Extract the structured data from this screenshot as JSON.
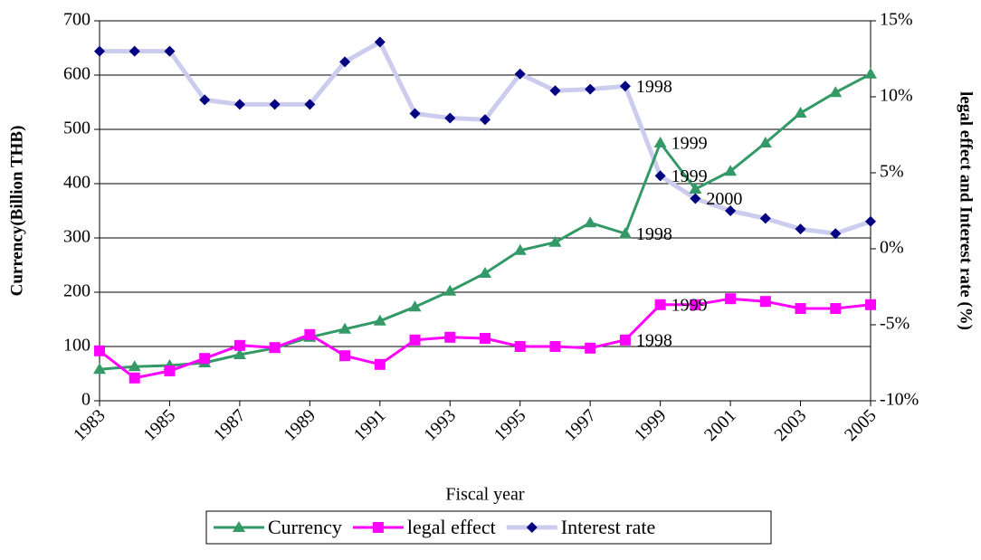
{
  "chart_data": {
    "type": "line",
    "x_label": "Fiscal year",
    "y_label": "Currency(Billion THB)",
    "y2_label": "legal effect and Interest rate (%)",
    "x": [
      1983,
      1984,
      1985,
      1986,
      1987,
      1988,
      1989,
      1990,
      1991,
      1992,
      1993,
      1994,
      1995,
      1996,
      1997,
      1998,
      1999,
      2000,
      2001,
      2002,
      2003,
      2004,
      2005
    ],
    "xlim": [
      1983,
      2005
    ],
    "xticks": [
      1983,
      1985,
      1987,
      1989,
      1991,
      1993,
      1995,
      1997,
      1999,
      2001,
      2003,
      2005
    ],
    "ylim": [
      0,
      700
    ],
    "yticks": [
      0,
      100,
      200,
      300,
      400,
      500,
      600,
      700
    ],
    "y2lim": [
      -10,
      15
    ],
    "y2ticks": [
      {
        "value": -10,
        "label": "-10%"
      },
      {
        "value": -5,
        "label": "-5%"
      },
      {
        "value": 0,
        "label": "0%"
      },
      {
        "value": 5,
        "label": "5%"
      },
      {
        "value": 10,
        "label": "10%"
      },
      {
        "value": 15,
        "label": "15%"
      }
    ],
    "grid": true,
    "legend": "bottom",
    "series": [
      {
        "name": "Currency",
        "color": "#339966",
        "marker": "triangle",
        "values": [
          58,
          63,
          65,
          70,
          85,
          97,
          117,
          132,
          147,
          173,
          202,
          235,
          277,
          292,
          328,
          308,
          475,
          390,
          423,
          475,
          530,
          568,
          602
        ]
      },
      {
        "name": "legal effect",
        "color": "#ff00ff",
        "marker": "square",
        "values": [
          92,
          42,
          55,
          78,
          102,
          98,
          122,
          83,
          67,
          112,
          117,
          115,
          100,
          100,
          97,
          112,
          177,
          177,
          188,
          183,
          170,
          170,
          177
        ]
      },
      {
        "name": "Interest rate",
        "color": "#ccccee",
        "marker_color": "#000080",
        "marker": "diamond",
        "axis": "y2",
        "values": [
          13.0,
          13.0,
          13.0,
          9.8,
          9.5,
          9.5,
          9.5,
          12.3,
          13.6,
          8.9,
          8.6,
          8.5,
          11.5,
          10.4,
          10.5,
          10.7,
          4.8,
          3.3,
          2.5,
          2.0,
          1.3,
          1.0,
          1.8
        ]
      }
    ],
    "annotations": [
      {
        "text": "1998",
        "x": 1998,
        "y": 308,
        "axis": "y"
      },
      {
        "text": "1999",
        "x": 1999,
        "y": 475,
        "axis": "y"
      },
      {
        "text": "2000",
        "x": 2000,
        "y": 3.3,
        "axis": "y2"
      },
      {
        "text": "1998",
        "x": 1998,
        "y": 10.7,
        "axis": "y2"
      },
      {
        "text": "1999",
        "x": 1999,
        "y": 4.8,
        "axis": "y2"
      },
      {
        "text": "1998",
        "x": 1998,
        "y": 112,
        "axis": "y"
      },
      {
        "text": "1999",
        "x": 1999,
        "y": 177,
        "axis": "y"
      }
    ]
  }
}
